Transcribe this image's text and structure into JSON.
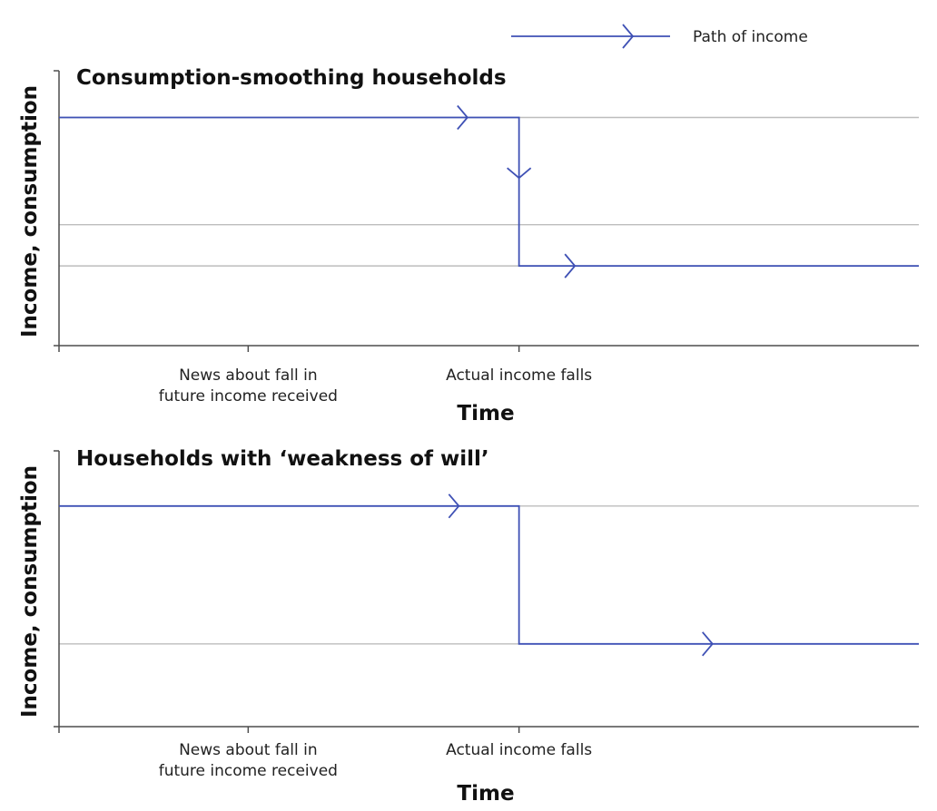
{
  "legend": {
    "label": "Path of income"
  },
  "colors": {
    "series": "#3f51b5",
    "axis": "#4d4d4d",
    "reference": "#bdbdbd",
    "text": "#111111"
  },
  "chart_data": [
    {
      "type": "line",
      "title": "Consumption-smoothing households",
      "xlabel": "Time",
      "ylabel": "Income, consumption",
      "xlim": [
        0,
        10
      ],
      "ylim": [
        0,
        10
      ],
      "x_ticks": [
        {
          "x": 2.2,
          "label": [
            "News about fall in",
            "future income received"
          ]
        },
        {
          "x": 5.35,
          "label": [
            "Actual income falls"
          ]
        }
      ],
      "reference_lines": [
        8.3,
        4.4,
        2.9
      ],
      "series": [
        {
          "name": "Path of income",
          "points": [
            [
              0,
              8.3
            ],
            [
              5.35,
              8.3
            ],
            [
              5.35,
              2.9
            ],
            [
              10,
              2.9
            ]
          ],
          "arrows": [
            {
              "x": 4.75,
              "y": 8.3,
              "direction": "right"
            },
            {
              "x": 5.35,
              "y": 6.1,
              "direction": "down"
            },
            {
              "x": 6.0,
              "y": 2.9,
              "direction": "right"
            }
          ]
        }
      ],
      "legend_position": "top-right",
      "grid": false
    },
    {
      "type": "line",
      "title": "Households with ‘weakness of will’",
      "xlabel": "Time",
      "ylabel": "Income, consumption",
      "xlim": [
        0,
        10
      ],
      "ylim": [
        0,
        10
      ],
      "x_ticks": [
        {
          "x": 2.2,
          "label": [
            "News about fall in",
            "future income received"
          ]
        },
        {
          "x": 5.35,
          "label": [
            "Actual income falls"
          ]
        }
      ],
      "reference_lines": [
        8.0,
        3.0
      ],
      "series": [
        {
          "name": "Path of income",
          "points": [
            [
              0,
              8.0
            ],
            [
              5.35,
              8.0
            ],
            [
              5.35,
              3.0
            ],
            [
              10,
              3.0
            ]
          ],
          "arrows": [
            {
              "x": 4.65,
              "y": 8.0,
              "direction": "right"
            },
            {
              "x": 7.6,
              "y": 3.0,
              "direction": "right"
            }
          ]
        }
      ],
      "legend_position": "top-right",
      "grid": false
    }
  ]
}
